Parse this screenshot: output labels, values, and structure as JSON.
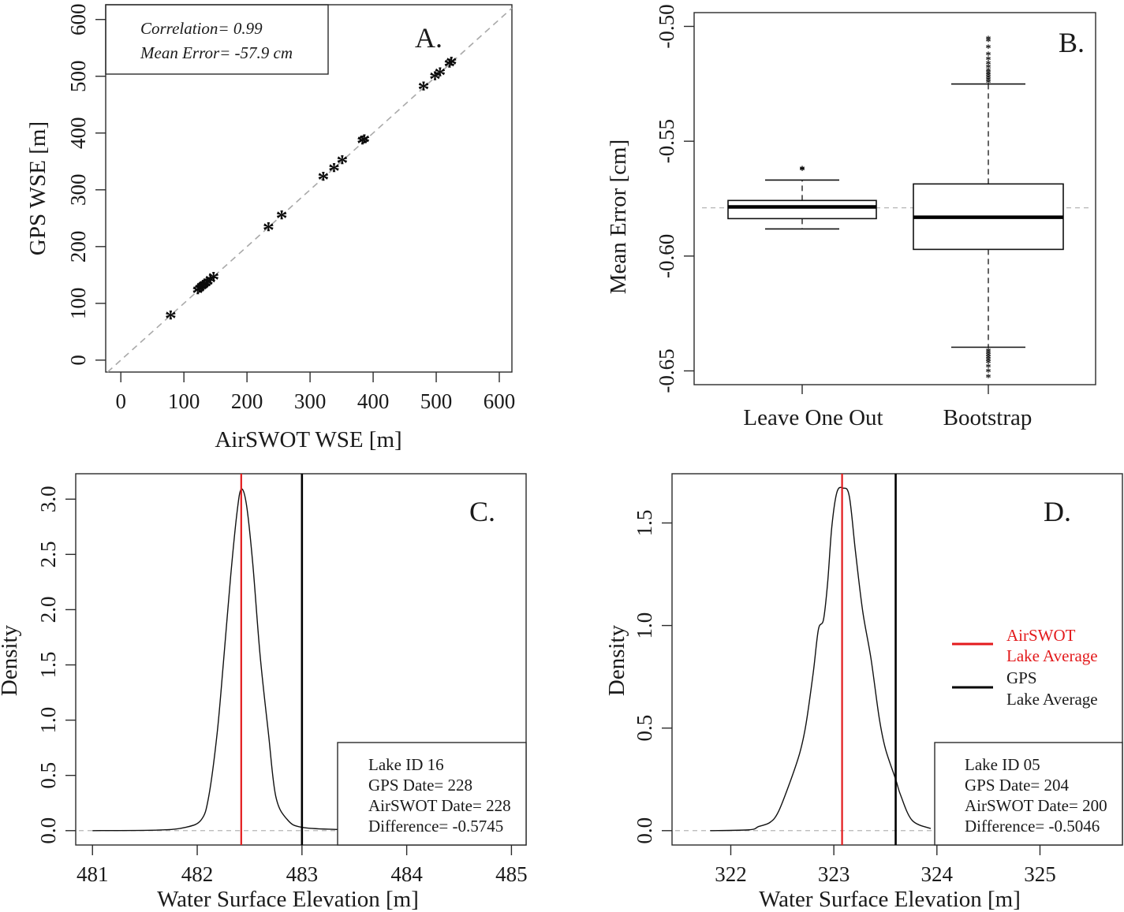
{
  "chart_data": [
    {
      "panel": "A.",
      "type": "scatter",
      "title": "",
      "xlabel": "AirSWOT WSE [m]",
      "ylabel": "GPS WSE [m]",
      "xlim": [
        -24,
        620
      ],
      "ylim": [
        -21,
        626
      ],
      "xticks": [
        0,
        100,
        200,
        300,
        400,
        500,
        600
      ],
      "yticks": [
        0,
        100,
        200,
        300,
        400,
        500,
        600
      ],
      "reference_line": "1:1 (dashed grey)",
      "marker": "*",
      "annotations": [
        "Correlation= 0.99",
        "Mean Error= -57.9 cm"
      ],
      "legend_position": "top-left",
      "points": [
        {
          "x": 79,
          "y": 80
        },
        {
          "x": 122,
          "y": 124
        },
        {
          "x": 125,
          "y": 127
        },
        {
          "x": 128,
          "y": 130
        },
        {
          "x": 130,
          "y": 132
        },
        {
          "x": 132,
          "y": 134
        },
        {
          "x": 135,
          "y": 136
        },
        {
          "x": 138,
          "y": 139
        },
        {
          "x": 142,
          "y": 143
        },
        {
          "x": 147,
          "y": 148
        },
        {
          "x": 234,
          "y": 235
        },
        {
          "x": 255,
          "y": 256
        },
        {
          "x": 321,
          "y": 324
        },
        {
          "x": 338,
          "y": 339
        },
        {
          "x": 351,
          "y": 353
        },
        {
          "x": 383,
          "y": 388
        },
        {
          "x": 386,
          "y": 390
        },
        {
          "x": 480,
          "y": 483
        },
        {
          "x": 498,
          "y": 501
        },
        {
          "x": 506,
          "y": 508
        },
        {
          "x": 521,
          "y": 523
        },
        {
          "x": 524,
          "y": 527
        }
      ]
    },
    {
      "panel": "B.",
      "type": "box",
      "xlabel": "",
      "ylabel": "Mean Error [cm]",
      "ylim": [
        -0.656,
        -0.494
      ],
      "yticks": [
        -0.5,
        -0.55,
        -0.6,
        -0.65
      ],
      "ytick_labels": [
        "-0.50",
        "-0.55",
        "-0.60",
        "-0.65"
      ],
      "reference_value": -0.579,
      "categories": [
        "Leave One Out",
        "Bootstrap"
      ],
      "boxes": [
        {
          "name": "Leave One Out",
          "q1": -0.5837,
          "median": -0.5786,
          "q3": -0.5758,
          "whisker_low": -0.5882,
          "whisker_high": -0.5669,
          "outliers": [
            -0.5621,
            -0.5618
          ]
        },
        {
          "name": "Bootstrap",
          "q1": -0.5971,
          "median": -0.5831,
          "q3": -0.5686,
          "whisker_low": -0.6397,
          "whisker_high": -0.5251,
          "outliers": [
            -0.5051,
            -0.506,
            -0.509,
            -0.512,
            -0.514,
            -0.516,
            -0.5175,
            -0.519,
            -0.52,
            -0.521,
            -0.522,
            -0.523,
            -0.524,
            -0.641,
            -0.642,
            -0.643,
            -0.644,
            -0.645,
            -0.646,
            -0.648,
            -0.65,
            -0.6524
          ]
        }
      ]
    },
    {
      "panel": "C.",
      "type": "line",
      "xlabel": "Water Surface Elevation [m]",
      "ylabel": "Density",
      "xlim": [
        480.84,
        485.14
      ],
      "ylim": [
        -0.13,
        3.23
      ],
      "xticks": [
        481,
        482,
        483,
        484,
        485
      ],
      "yticks": [
        0.0,
        0.5,
        1.0,
        1.5,
        2.0,
        2.5,
        3.0
      ],
      "ytick_labels": [
        "0.0",
        "0.5",
        "1.0",
        "1.5",
        "2.0",
        "2.5",
        "3.0"
      ],
      "airswot_lake_average": 482.42,
      "gps_lake_average": 483.0,
      "info": [
        "Lake ID 16",
        "GPS Date= 228",
        "AirSWOT Date= 228",
        "Difference= -0.5745"
      ],
      "series": [
        {
          "name": "density",
          "x": [
            481.0,
            481.62,
            481.89,
            482.04,
            482.11,
            482.19,
            482.25,
            482.32,
            482.38,
            482.42,
            482.47,
            482.53,
            482.6,
            482.68,
            482.75,
            482.86,
            483.0,
            483.35,
            483.8
          ],
          "y": [
            0.0,
            0.005,
            0.03,
            0.1,
            0.31,
            0.88,
            1.52,
            2.31,
            2.88,
            3.09,
            2.95,
            2.42,
            1.59,
            0.88,
            0.31,
            0.1,
            0.03,
            0.01,
            0.0
          ]
        }
      ]
    },
    {
      "panel": "D.",
      "type": "line",
      "xlabel": "Water Surface Elevation [m]",
      "ylabel": "Density",
      "xlim": [
        321.43,
        325.8
      ],
      "ylim": [
        -0.07,
        1.74
      ],
      "xticks": [
        322,
        323,
        324,
        325
      ],
      "yticks": [
        0.0,
        0.5,
        1.0,
        1.5
      ],
      "ytick_labels": [
        "0.0",
        "0.5",
        "1.0",
        "1.5"
      ],
      "airswot_lake_average": 323.08,
      "gps_lake_average": 323.6,
      "info": [
        "Lake ID 05",
        "GPS Date= 204",
        "AirSWOT Date= 200",
        "Difference= -0.5046"
      ],
      "legend": [
        {
          "label_line1": "AirSWOT",
          "label_line2": "Lake Average",
          "color": "#e31a1c"
        },
        {
          "label_line1": "GPS",
          "label_line2": "Lake Average",
          "color": "#000000"
        }
      ],
      "legend_position": "center-right",
      "series": [
        {
          "name": "density",
          "x": [
            321.8,
            322.18,
            322.27,
            322.38,
            322.46,
            322.57,
            322.67,
            322.73,
            322.8,
            322.85,
            322.9,
            322.94,
            322.98,
            323.03,
            323.09,
            323.15,
            323.21,
            323.28,
            323.36,
            323.44,
            323.5,
            323.6,
            323.65,
            323.76,
            323.94
          ],
          "y": [
            0.0,
            0.004,
            0.02,
            0.04,
            0.09,
            0.23,
            0.38,
            0.52,
            0.77,
            0.98,
            1.03,
            1.21,
            1.48,
            1.65,
            1.67,
            1.63,
            1.36,
            1.07,
            0.84,
            0.55,
            0.4,
            0.25,
            0.17,
            0.05,
            0.01
          ]
        }
      ]
    }
  ],
  "colors": {
    "airswot": "#e31a1c",
    "gps": "#000000",
    "reference": "#a9a9a9"
  }
}
